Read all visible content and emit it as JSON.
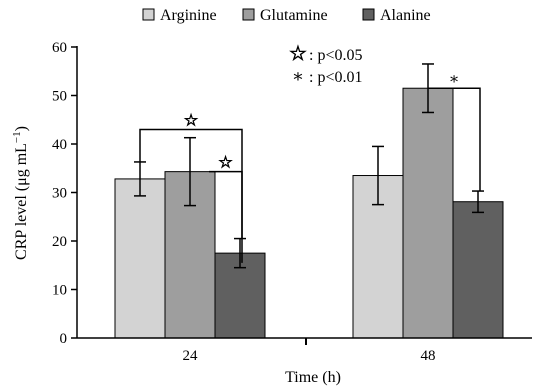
{
  "chart_data": {
    "type": "bar",
    "title": "",
    "xlabel": "Time (h)",
    "ylabel": "CRP level (μg mL",
    "ylabel_sup": "−1",
    "ylabel_close": ")",
    "ylim": [
      0,
      60
    ],
    "yticks": [
      0,
      10,
      20,
      30,
      40,
      50,
      60
    ],
    "grid": false,
    "legend_position": "top",
    "categories": [
      "24",
      "48"
    ],
    "series": [
      {
        "name": "Arginine",
        "color": "#d3d3d3",
        "values": [
          32.8,
          33.5
        ],
        "errors": [
          3.5,
          6.0
        ]
      },
      {
        "name": "Glutamine",
        "color": "#9e9e9e",
        "values": [
          34.3,
          51.5
        ],
        "errors": [
          7.0,
          5.0
        ]
      },
      {
        "name": "Alanine",
        "color": "#606060",
        "values": [
          17.5,
          28.1
        ],
        "errors": [
          3.0,
          2.2
        ]
      }
    ],
    "significance_key": [
      {
        "symbol": "☆",
        "label": ": p<0.05"
      },
      {
        "symbol": "∗",
        "label": ": p<0.01"
      }
    ],
    "annotations": [
      {
        "symbol": "☆",
        "category": "24",
        "from": "Arginine",
        "to": "Alanine",
        "bracket_y": 43
      },
      {
        "symbol": "☆",
        "category": "24",
        "from": "Glutamine",
        "to": "Alanine",
        "bracket_y": 34.3
      },
      {
        "symbol": "∗",
        "category": "48",
        "from": "Glutamine",
        "to": "Alanine",
        "bracket_y": 51.5
      }
    ]
  }
}
